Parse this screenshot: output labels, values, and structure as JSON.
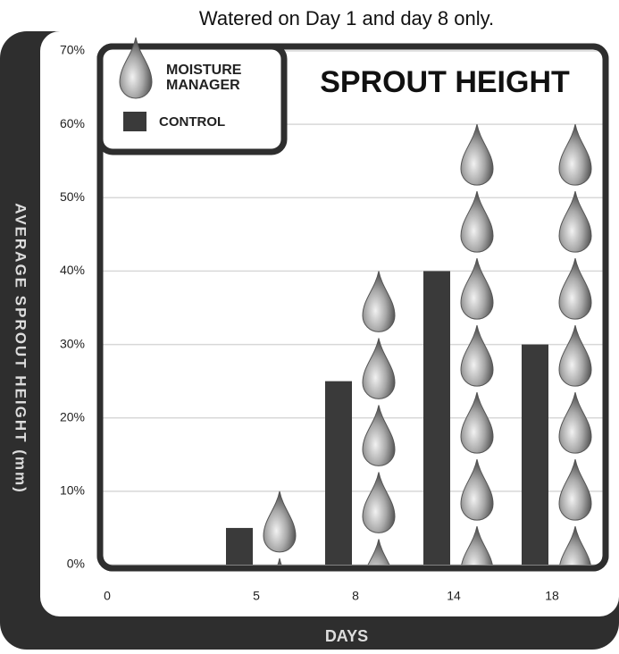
{
  "chart_data": {
    "type": "bar",
    "title": "SPROUT HEIGHT",
    "subtitle": "Watered on Day 1 and day 8 only.",
    "x_label": "DAYS",
    "y_label": "AVERAGE SPROUT HEIGHT (mm)",
    "categories": [
      "0",
      "5",
      "8",
      "14",
      "18"
    ],
    "series": [
      {
        "name": "MOISTURE MANAGER",
        "color": "#8a8a8a",
        "values": [
          0,
          10,
          40,
          60,
          60
        ]
      },
      {
        "name": "CONTROL",
        "color": "#3a3a3a",
        "values": [
          0,
          5,
          25,
          40,
          30
        ]
      }
    ],
    "ylim": [
      0,
      70
    ],
    "yticks": [
      {
        "value": 0,
        "label": "0%"
      },
      {
        "value": 10,
        "label": "10%"
      },
      {
        "value": 20,
        "label": "20%"
      },
      {
        "value": 30,
        "label": "30%"
      },
      {
        "value": 40,
        "label": "40%"
      },
      {
        "value": 50,
        "label": "50%"
      },
      {
        "value": 60,
        "label": "60%"
      },
      {
        "value": 70,
        "label": "70%"
      }
    ],
    "grid": true
  }
}
